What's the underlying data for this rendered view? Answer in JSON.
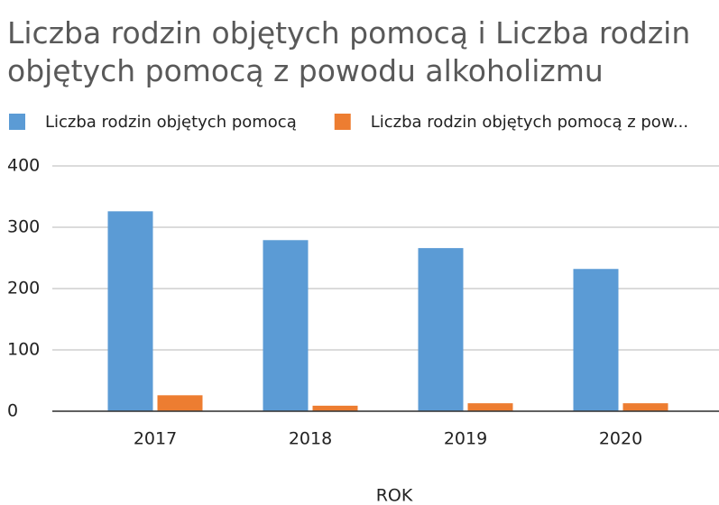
{
  "chart_data": {
    "type": "bar",
    "title": "Liczba rodzin objętych pomocą i Liczba  rodzin objętych pomocą z powodu alkoholizmu",
    "title_lines": [
      "Liczba rodzin objętych pomocą i Liczba  rodzin",
      "objętych pomocą z powodu alkoholizmu"
    ],
    "x_label": "ROK",
    "categories": [
      "2017",
      "2018",
      "2019",
      "2020"
    ],
    "series": [
      {
        "name": "Liczba rodzin objętych pomocą",
        "color": "#5b9bd5",
        "values": [
          326,
          279,
          266,
          232
        ]
      },
      {
        "name": "Liczba  rodzin objętych pomocą z pow...",
        "color": "#ed7d31",
        "values": [
          26,
          9,
          13,
          13
        ]
      }
    ],
    "ylim": [
      0,
      400
    ],
    "yticks": [
      0,
      100,
      200,
      300,
      400
    ],
    "grid": true,
    "legend": "top"
  }
}
